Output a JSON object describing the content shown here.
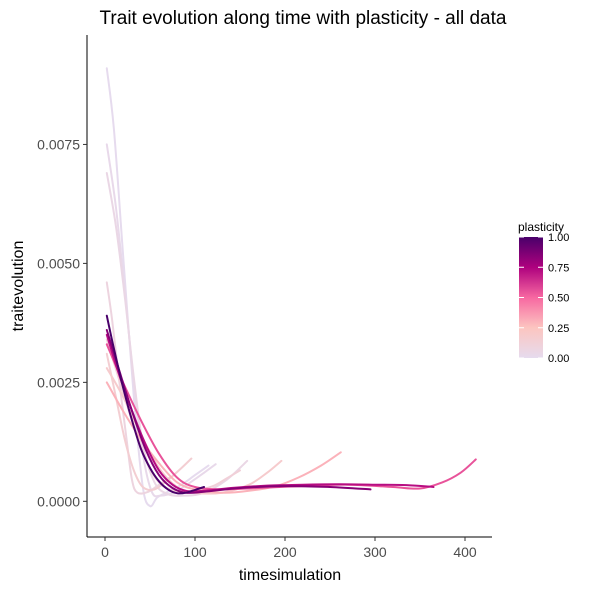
{
  "chart_data": {
    "type": "line",
    "title": "Trait evolution along time with plasticity - all data",
    "xlabel": "timesimulation",
    "ylabel": "traitevolution",
    "xlim": [
      -20,
      430
    ],
    "ylim": [
      -0.00075,
      0.0098
    ],
    "x_ticks": [
      0,
      100,
      200,
      300,
      400
    ],
    "x_tick_labels": [
      "0",
      "100",
      "200",
      "300",
      "400"
    ],
    "y_ticks": [
      0,
      0.0025,
      0.005,
      0.0075
    ],
    "y_tick_labels": [
      "0.0000",
      "0.0025",
      "0.0050",
      "0.0075"
    ],
    "grid": false,
    "legend": {
      "title": "plasticity",
      "position": "right",
      "type": "colorbar",
      "labels": [
        "1.00",
        "0.75",
        "0.50",
        "0.25",
        "0.00"
      ],
      "ticks": [
        1.0,
        0.75,
        0.5,
        0.25,
        0.0
      ],
      "colors": [
        "#e6dbee",
        "#fcc5c0",
        "#f768a1",
        "#ae017e",
        "#49006a"
      ]
    },
    "series": [
      {
        "plasticity": 0.0,
        "points": [
          [
            2,
            0.0091
          ],
          [
            10,
            0.0078
          ],
          [
            20,
            0.0052
          ],
          [
            32,
            0.0022
          ],
          [
            42,
            0.0003
          ],
          [
            50,
            -0.0001
          ],
          [
            58,
            8e-05
          ],
          [
            70,
            0.0002
          ],
          [
            85,
            0.00035
          ],
          [
            100,
            0.00055
          ],
          [
            115,
            0.00075
          ]
        ]
      },
      {
        "plasticity": 0.02,
        "points": [
          [
            2,
            0.0075
          ],
          [
            12,
            0.0062
          ],
          [
            22,
            0.0044
          ],
          [
            32,
            0.0025
          ],
          [
            42,
            0.001
          ],
          [
            52,
            0.0002
          ],
          [
            62,
            0.00012
          ],
          [
            78,
            0.0002
          ],
          [
            95,
            0.0004
          ],
          [
            110,
            0.0006
          ],
          [
            123,
            0.00078
          ]
        ]
      },
      {
        "plasticity": 0.05,
        "points": [
          [
            2,
            0.0069
          ],
          [
            12,
            0.0058
          ],
          [
            22,
            0.0043
          ],
          [
            32,
            0.0026
          ],
          [
            42,
            0.0012
          ],
          [
            55,
            0.0004
          ],
          [
            70,
            0.00015
          ],
          [
            90,
            0.00012
          ],
          [
            110,
            0.00018
          ],
          [
            135,
            0.00045
          ],
          [
            158,
            0.00085
          ]
        ]
      },
      {
        "plasticity": 0.08,
        "points": [
          [
            2,
            0.0046
          ],
          [
            8,
            0.0038
          ],
          [
            16,
            0.0025
          ],
          [
            24,
            0.0013
          ],
          [
            30,
            0.00045
          ],
          [
            36,
            0.00018
          ],
          [
            48,
            0.0002
          ],
          [
            60,
            0.00035
          ],
          [
            72,
            0.0005
          ]
        ]
      },
      {
        "plasticity": 0.12,
        "points": [
          [
            2,
            0.0034
          ],
          [
            15,
            0.0026
          ],
          [
            30,
            0.0017
          ],
          [
            45,
            0.0009
          ],
          [
            60,
            0.0004
          ],
          [
            80,
            0.0002
          ],
          [
            100,
            0.00022
          ],
          [
            120,
            0.00032
          ],
          [
            135,
            0.00048
          ],
          [
            150,
            0.00065
          ]
        ]
      },
      {
        "plasticity": 0.15,
        "points": [
          [
            2,
            0.0031
          ],
          [
            12,
            0.0022
          ],
          [
            22,
            0.0013
          ],
          [
            32,
            0.00065
          ],
          [
            42,
            0.0003
          ],
          [
            55,
            0.00025
          ],
          [
            70,
            0.00045
          ],
          [
            85,
            0.0007
          ],
          [
            96,
            0.0009
          ]
        ]
      },
      {
        "plasticity": 0.18,
        "points": [
          [
            2,
            0.0028
          ],
          [
            20,
            0.0022
          ],
          [
            40,
            0.0014
          ],
          [
            60,
            0.0007
          ],
          [
            80,
            0.0003
          ],
          [
            100,
            0.00018
          ],
          [
            130,
            0.00018
          ],
          [
            160,
            0.00035
          ],
          [
            180,
            0.0006
          ],
          [
            196,
            0.00085
          ]
        ]
      },
      {
        "plasticity": 0.3,
        "points": [
          [
            2,
            0.0025
          ],
          [
            20,
            0.0019
          ],
          [
            40,
            0.0013
          ],
          [
            60,
            0.0008
          ],
          [
            80,
            0.0004
          ],
          [
            100,
            0.00025
          ],
          [
            130,
            0.00018
          ],
          [
            160,
            0.00022
          ],
          [
            190,
            0.00032
          ],
          [
            215,
            0.0005
          ],
          [
            240,
            0.00075
          ],
          [
            262,
            0.00103
          ]
        ]
      },
      {
        "plasticity": 0.55,
        "points": [
          [
            2,
            0.0033
          ],
          [
            20,
            0.0025
          ],
          [
            40,
            0.0017
          ],
          [
            60,
            0.001
          ],
          [
            80,
            0.0005
          ],
          [
            100,
            0.0003
          ],
          [
            130,
            0.00025
          ],
          [
            170,
            0.00028
          ],
          [
            220,
            0.00032
          ],
          [
            270,
            0.00035
          ],
          [
            320,
            0.0003
          ],
          [
            350,
            0.00027
          ],
          [
            375,
            0.0004
          ],
          [
            395,
            0.0006
          ],
          [
            412,
            0.00088
          ]
        ]
      },
      {
        "plasticity": 0.72,
        "points": [
          [
            2,
            0.0035
          ],
          [
            15,
            0.0027
          ],
          [
            30,
            0.0019
          ],
          [
            45,
            0.0012
          ],
          [
            60,
            0.00065
          ],
          [
            75,
            0.00035
          ],
          [
            90,
            0.00022
          ],
          [
            110,
            0.00022
          ],
          [
            140,
            0.00028
          ],
          [
            180,
            0.00033
          ],
          [
            220,
            0.00035
          ],
          [
            260,
            0.00036
          ],
          [
            300,
            0.00035
          ],
          [
            335,
            0.00034
          ],
          [
            365,
            0.0003
          ]
        ]
      },
      {
        "plasticity": 0.85,
        "points": [
          [
            2,
            0.0036
          ],
          [
            15,
            0.0028
          ],
          [
            30,
            0.0019
          ],
          [
            45,
            0.0011
          ],
          [
            60,
            0.00055
          ],
          [
            75,
            0.00028
          ],
          [
            90,
            0.00018
          ],
          [
            110,
            0.0002
          ],
          [
            150,
            0.00028
          ],
          [
            200,
            0.00032
          ],
          [
            250,
            0.0003
          ],
          [
            295,
            0.00025
          ]
        ]
      },
      {
        "plasticity": 1.0,
        "points": [
          [
            2,
            0.0039
          ],
          [
            10,
            0.0032
          ],
          [
            20,
            0.0024
          ],
          [
            30,
            0.0017
          ],
          [
            40,
            0.0011
          ],
          [
            50,
            0.0007
          ],
          [
            60,
            0.00042
          ],
          [
            70,
            0.00025
          ],
          [
            80,
            0.00017
          ],
          [
            90,
            0.00018
          ],
          [
            100,
            0.00024
          ],
          [
            110,
            0.0003
          ]
        ]
      }
    ]
  }
}
